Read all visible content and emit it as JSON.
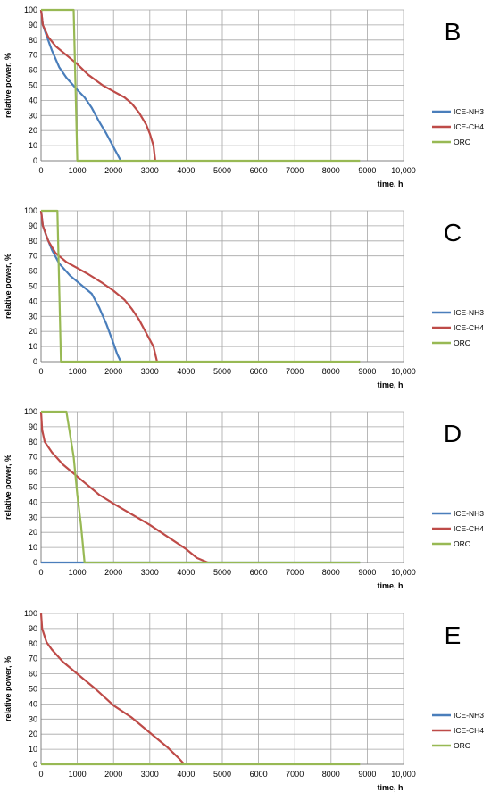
{
  "chart_data": [
    {
      "type": "line",
      "panel_label": "B",
      "xlabel": "time, h",
      "ylabel": "relative power, %",
      "xlim": [
        0,
        10000
      ],
      "ylim": [
        0,
        100
      ],
      "x_ticks": [
        "0",
        "1000",
        "2000",
        "3000",
        "4000",
        "5000",
        "6000",
        "7000",
        "8000",
        "9000",
        "10,000"
      ],
      "y_ticks": [
        "0",
        "10",
        "20",
        "30",
        "40",
        "50",
        "60",
        "70",
        "80",
        "90",
        "100"
      ],
      "grid": true,
      "legend_position": "right",
      "series": [
        {
          "name": "ICE-NH3",
          "color": "#4a7ebb",
          "points": [
            [
              0,
              100
            ],
            [
              50,
              90
            ],
            [
              150,
              83
            ],
            [
              300,
              73
            ],
            [
              500,
              62
            ],
            [
              700,
              55
            ],
            [
              1000,
              47
            ],
            [
              1200,
              42
            ],
            [
              1400,
              35
            ],
            [
              1600,
              26
            ],
            [
              1800,
              18
            ],
            [
              2000,
              9
            ],
            [
              2200,
              0
            ]
          ]
        },
        {
          "name": "ICE-CH4",
          "color": "#be4b48",
          "points": [
            [
              0,
              100
            ],
            [
              50,
              90
            ],
            [
              200,
              82
            ],
            [
              400,
              76
            ],
            [
              700,
              70
            ],
            [
              1000,
              64
            ],
            [
              1300,
              57
            ],
            [
              1700,
              50
            ],
            [
              2000,
              46
            ],
            [
              2300,
              42
            ],
            [
              2500,
              38
            ],
            [
              2700,
              32
            ],
            [
              2900,
              24
            ],
            [
              3000,
              18
            ],
            [
              3100,
              10
            ],
            [
              3150,
              0
            ]
          ]
        },
        {
          "name": "ORC",
          "color": "#98b954",
          "points": [
            [
              0,
              100
            ],
            [
              900,
              100
            ],
            [
              1000,
              0
            ],
            [
              8800,
              0
            ]
          ]
        }
      ]
    },
    {
      "type": "line",
      "panel_label": "C",
      "xlabel": "time, h",
      "ylabel": "relative power, %",
      "xlim": [
        0,
        10000
      ],
      "ylim": [
        0,
        100
      ],
      "x_ticks": [
        "0",
        "1000",
        "2000",
        "3000",
        "4000",
        "5000",
        "6000",
        "7000",
        "8000",
        "9000",
        "10,000"
      ],
      "y_ticks": [
        "0",
        "10",
        "20",
        "30",
        "40",
        "50",
        "60",
        "70",
        "80",
        "90",
        "100"
      ],
      "grid": true,
      "legend_position": "right",
      "series": [
        {
          "name": "ICE-NH3",
          "color": "#4a7ebb",
          "points": [
            [
              0,
              100
            ],
            [
              50,
              90
            ],
            [
              150,
              83
            ],
            [
              300,
              74
            ],
            [
              500,
              65
            ],
            [
              800,
              57
            ],
            [
              1100,
              51
            ],
            [
              1400,
              45
            ],
            [
              1600,
              36
            ],
            [
              1800,
              25
            ],
            [
              2000,
              12
            ],
            [
              2100,
              5
            ],
            [
              2200,
              0
            ]
          ]
        },
        {
          "name": "ICE-CH4",
          "color": "#be4b48",
          "points": [
            [
              0,
              100
            ],
            [
              50,
              90
            ],
            [
              200,
              80
            ],
            [
              400,
              72
            ],
            [
              700,
              66
            ],
            [
              1000,
              62
            ],
            [
              1300,
              58
            ],
            [
              1700,
              52
            ],
            [
              2000,
              47
            ],
            [
              2300,
              41
            ],
            [
              2500,
              35
            ],
            [
              2700,
              28
            ],
            [
              2900,
              19
            ],
            [
              3100,
              10
            ],
            [
              3200,
              0
            ]
          ]
        },
        {
          "name": "ORC",
          "color": "#98b954",
          "points": [
            [
              0,
              100
            ],
            [
              450,
              100
            ],
            [
              550,
              0
            ],
            [
              8800,
              0
            ]
          ]
        }
      ]
    },
    {
      "type": "line",
      "panel_label": "D",
      "xlabel": "time, h",
      "ylabel": "relative power, %",
      "xlim": [
        0,
        10000
      ],
      "ylim": [
        0,
        100
      ],
      "x_ticks": [
        "0",
        "1000",
        "2000",
        "3000",
        "4000",
        "5000",
        "6000",
        "7000",
        "8000",
        "9000",
        "10,000"
      ],
      "y_ticks": [
        "0",
        "10",
        "20",
        "30",
        "40",
        "50",
        "60",
        "70",
        "80",
        "90",
        "100"
      ],
      "grid": true,
      "legend_position": "right",
      "series": [
        {
          "name": "ICE-NH3",
          "color": "#4a7ebb",
          "points": [
            [
              0,
              0
            ],
            [
              8800,
              0
            ]
          ]
        },
        {
          "name": "ICE-CH4",
          "color": "#be4b48",
          "points": [
            [
              0,
              100
            ],
            [
              30,
              88
            ],
            [
              100,
              80
            ],
            [
              300,
              73
            ],
            [
              600,
              65
            ],
            [
              1000,
              57
            ],
            [
              1300,
              51
            ],
            [
              1600,
              45
            ],
            [
              2000,
              39
            ],
            [
              2500,
              32
            ],
            [
              3000,
              25
            ],
            [
              3500,
              17
            ],
            [
              4000,
              9
            ],
            [
              4300,
              3
            ],
            [
              4600,
              0
            ]
          ]
        },
        {
          "name": "ORC",
          "color": "#98b954",
          "points": [
            [
              0,
              100
            ],
            [
              700,
              100
            ],
            [
              900,
              70
            ],
            [
              1000,
              45
            ],
            [
              1100,
              25
            ],
            [
              1200,
              0
            ],
            [
              8800,
              0
            ]
          ]
        }
      ]
    },
    {
      "type": "line",
      "panel_label": "E",
      "xlabel": "time, h",
      "ylabel": "relative power, %",
      "xlim": [
        0,
        10000
      ],
      "ylim": [
        0,
        100
      ],
      "x_ticks": [
        "0",
        "1000",
        "2000",
        "3000",
        "4000",
        "5000",
        "6000",
        "7000",
        "8000",
        "9000",
        "10,000"
      ],
      "y_ticks": [
        "0",
        "10",
        "20",
        "30",
        "40",
        "50",
        "60",
        "70",
        "80",
        "90",
        "100"
      ],
      "grid": true,
      "legend_position": "right",
      "series": [
        {
          "name": "ICE-NH3",
          "color": "#4a7ebb",
          "points": []
        },
        {
          "name": "ICE-CH4",
          "color": "#be4b48",
          "points": [
            [
              0,
              100
            ],
            [
              30,
              90
            ],
            [
              150,
              81
            ],
            [
              300,
              76
            ],
            [
              600,
              68
            ],
            [
              1000,
              60
            ],
            [
              1500,
              50
            ],
            [
              2000,
              39
            ],
            [
              2500,
              31
            ],
            [
              3000,
              21
            ],
            [
              3500,
              11
            ],
            [
              3800,
              4
            ],
            [
              3950,
              0
            ]
          ]
        },
        {
          "name": "ORC",
          "color": "#98b954",
          "points": [
            [
              0,
              0
            ],
            [
              8800,
              0
            ]
          ]
        }
      ]
    }
  ]
}
